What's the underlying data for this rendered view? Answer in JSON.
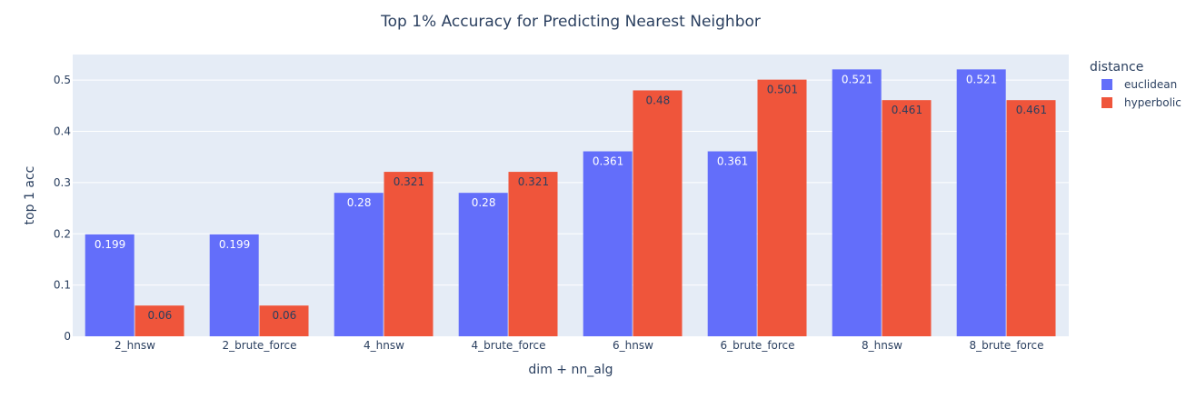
{
  "chart_data": {
    "type": "bar",
    "title": "Top 1% Accuracy for Predicting Nearest Neighbor",
    "xlabel": "dim + nn_alg",
    "ylabel": "top 1 acc",
    "ylim": [
      0,
      0.55
    ],
    "yticks": [
      0,
      0.1,
      0.2,
      0.3,
      0.4,
      0.5
    ],
    "ytick_labels": [
      "0",
      "0.1",
      "0.2",
      "0.3",
      "0.4",
      "0.5"
    ],
    "grid": true,
    "legend": {
      "title": "distance",
      "position": "top-right"
    },
    "categories": [
      "2_hnsw",
      "2_brute_force",
      "4_hnsw",
      "4_brute_force",
      "6_hnsw",
      "6_brute_force",
      "8_hnsw",
      "8_brute_force"
    ],
    "series": [
      {
        "name": "euclidean",
        "color": "#636efa",
        "label_color": "#ffffff",
        "values": [
          0.199,
          0.199,
          0.28,
          0.28,
          0.361,
          0.361,
          0.521,
          0.521
        ],
        "labels": [
          "0.199",
          "0.199",
          "0.28",
          "0.28",
          "0.361",
          "0.361",
          "0.521",
          "0.521"
        ]
      },
      {
        "name": "hyperbolic",
        "color": "#ef553b",
        "label_color": "#2a3f5f",
        "values": [
          0.06,
          0.06,
          0.321,
          0.321,
          0.48,
          0.501,
          0.461,
          0.461
        ],
        "labels": [
          "0.06",
          "0.06",
          "0.321",
          "0.321",
          "0.48",
          "0.501",
          "0.461",
          "0.461"
        ]
      }
    ]
  }
}
